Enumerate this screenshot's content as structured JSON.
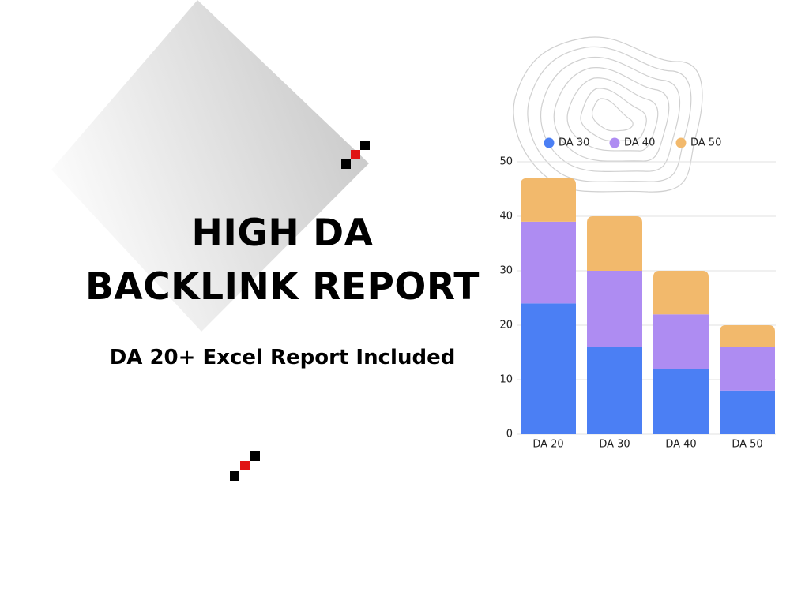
{
  "chart_data": {
    "type": "stacked_bar",
    "title": "HIGH DA BACKLINK REPORT",
    "subtitle": "DA 20+ Excel Report Included",
    "categories": [
      "DA 20",
      "DA 30",
      "DA 40",
      "DA 50"
    ],
    "series": [
      {
        "name": "DA 30",
        "color": "#4b7ff4",
        "values": [
          24,
          16,
          12,
          8
        ]
      },
      {
        "name": "DA 40",
        "color": "#ae8cf2",
        "values": [
          15,
          14,
          10,
          8
        ]
      },
      {
        "name": "DA 50",
        "color": "#f2b96c",
        "values": [
          8,
          10,
          8,
          4
        ]
      }
    ],
    "ylim": [
      0,
      50
    ],
    "yticks": [
      0,
      10,
      20,
      30,
      40,
      50
    ],
    "grid": true,
    "legend": "top"
  }
}
